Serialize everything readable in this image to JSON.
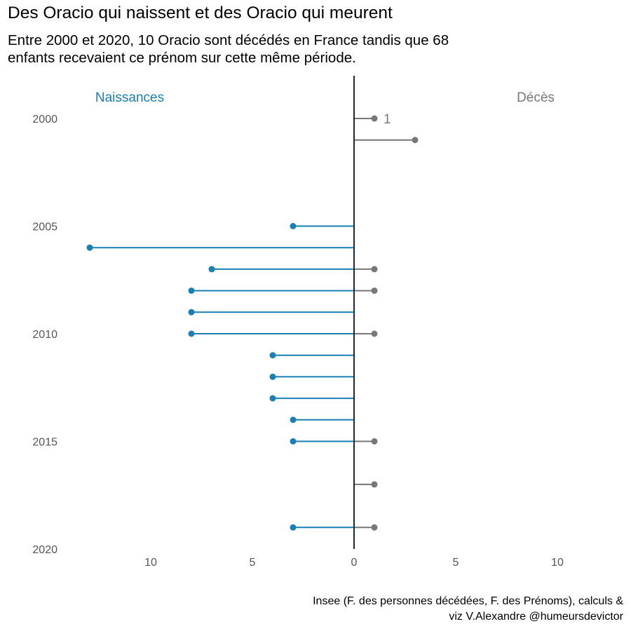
{
  "header": {
    "title": "Des Oracio qui naissent et des Oracio qui meurent",
    "subtitle_lines": [
      "Entre 2000 et 2020, 10 Oracio sont décédés en France tandis que 68",
      "enfants recevaient ce prénom sur cette même période."
    ]
  },
  "caption_lines": [
    "Insee (F. des personnes décédées, F. des Prénoms), calculs &",
    "viz V.Alexandre @humeursdevictor"
  ],
  "colors": {
    "births": "#1a7fb5",
    "deaths": "#777777",
    "axis": "#1c2833",
    "tick_text": "#555555"
  },
  "chart_data": {
    "type": "lollipop",
    "orientation": "horizontal-diverging",
    "x_tick_values": [
      -10,
      -5,
      0,
      5,
      10
    ],
    "x_tick_labels": [
      "10",
      "5",
      "0",
      "5",
      "10"
    ],
    "xlim": [
      -13.7,
      13.7
    ],
    "y_tick_labels": [
      "2000",
      "2005",
      "2010",
      "2015",
      "2020"
    ],
    "ylim": [
      2000,
      2020
    ],
    "grid": false,
    "series": [
      {
        "name": "Naissances",
        "side": "left",
        "data": [
          {
            "year": 2005,
            "value": 3
          },
          {
            "year": 2006,
            "value": 13
          },
          {
            "year": 2007,
            "value": 7
          },
          {
            "year": 2008,
            "value": 8
          },
          {
            "year": 2009,
            "value": 8
          },
          {
            "year": 2010,
            "value": 8
          },
          {
            "year": 2011,
            "value": 4
          },
          {
            "year": 2012,
            "value": 4
          },
          {
            "year": 2013,
            "value": 4
          },
          {
            "year": 2014,
            "value": 3
          },
          {
            "year": 2015,
            "value": 3
          },
          {
            "year": 2019,
            "value": 3
          }
        ]
      },
      {
        "name": "Décès",
        "side": "right",
        "data": [
          {
            "year": 2000,
            "value": 1
          },
          {
            "year": 2001,
            "value": 3
          },
          {
            "year": 2007,
            "value": 1
          },
          {
            "year": 2008,
            "value": 1
          },
          {
            "year": 2010,
            "value": 1
          },
          {
            "year": 2015,
            "value": 1
          },
          {
            "year": 2017,
            "value": 1
          },
          {
            "year": 2019,
            "value": 1
          }
        ]
      }
    ],
    "annotations": [
      {
        "series": "Décès",
        "year": 2000,
        "text": "1"
      }
    ]
  }
}
